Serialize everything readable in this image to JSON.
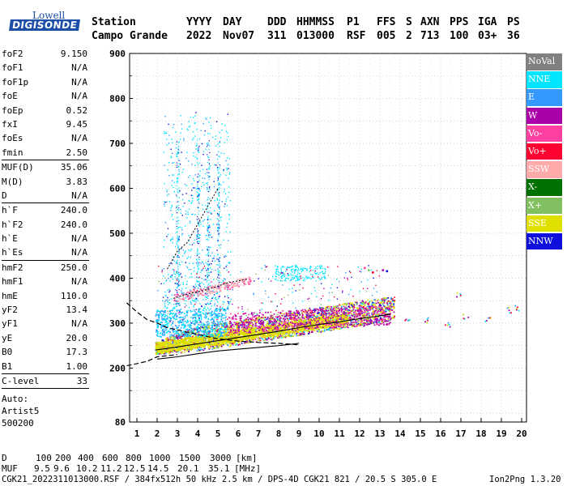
{
  "logo": {
    "top": "Lowell",
    "main": "DIGISONDE"
  },
  "header": {
    "labels": [
      "Station",
      "YYYY",
      "DAY",
      "DDD",
      "HHMMSS",
      "P1",
      "FFS",
      "S",
      "AXN",
      "PPS",
      "IGA",
      "PS"
    ],
    "values": [
      "Campo Grande",
      "2022",
      "Nov07",
      "311",
      "013000",
      "RSF",
      "005",
      "2",
      "713",
      "100",
      "03+",
      "36"
    ]
  },
  "params_groups": [
    [
      {
        "label": "foF2",
        "value": "9.150"
      },
      {
        "label": "foF1",
        "value": "N/A"
      },
      {
        "label": "foF1p",
        "value": "N/A"
      },
      {
        "label": "foE",
        "value": "N/A"
      },
      {
        "label": "foEp",
        "value": "0.52"
      },
      {
        "label": "fxI",
        "value": "9.45"
      },
      {
        "label": "foEs",
        "value": "N/A"
      },
      {
        "label": "fmin",
        "value": "2.50"
      }
    ],
    [
      {
        "label": "MUF(D)",
        "value": "35.06"
      },
      {
        "label": "M(D)",
        "value": "3.83"
      },
      {
        "label": "D",
        "value": "N/A"
      }
    ],
    [
      {
        "label": "h`F",
        "value": "240.0"
      },
      {
        "label": "h`F2",
        "value": "240.0"
      },
      {
        "label": "h`E",
        "value": "N/A"
      },
      {
        "label": "h`Es",
        "value": "N/A"
      }
    ],
    [
      {
        "label": "hmF2",
        "value": "250.0"
      },
      {
        "label": "hmF1",
        "value": "N/A"
      },
      {
        "label": "hmE",
        "value": "110.0"
      },
      {
        "label": "yF2",
        "value": "13.4"
      },
      {
        "label": "yF1",
        "value": "N/A"
      },
      {
        "label": "yE",
        "value": "20.0"
      },
      {
        "label": "B0",
        "value": "17.3"
      },
      {
        "label": "B1",
        "value": "1.00"
      }
    ],
    [
      {
        "label": "C-level",
        "value": "33"
      }
    ]
  ],
  "autoscale": {
    "line1": "Auto:",
    "line2": "Artist5",
    "line3": "500200"
  },
  "legend": [
    {
      "name": "NoVal",
      "color": "#808080"
    },
    {
      "name": "NNE",
      "color": "#00e5ff"
    },
    {
      "name": "E",
      "color": "#3399ff"
    },
    {
      "name": "W",
      "color": "#aa00aa"
    },
    {
      "name": "Vo-",
      "color": "#ff40a0"
    },
    {
      "name": "Vo+",
      "color": "#ff0030"
    },
    {
      "name": "SSW",
      "color": "#ffaaaa"
    },
    {
      "name": "X-",
      "color": "#007000"
    },
    {
      "name": "X+",
      "color": "#80c060"
    },
    {
      "name": "SSE",
      "color": "#e0e000"
    },
    {
      "name": "NNW",
      "color": "#1010dd"
    }
  ],
  "chart_data": {
    "type": "scatter",
    "title": "",
    "xlabel": "",
    "ylabel": "",
    "xlim": [
      0.5,
      20
    ],
    "ylim": [
      80,
      900
    ],
    "xticks": [
      1,
      2,
      3,
      4,
      5,
      6,
      7,
      8,
      9,
      10,
      11,
      12,
      13,
      14,
      15,
      16,
      17,
      18,
      19,
      20
    ],
    "yticks": [
      80,
      200,
      300,
      400,
      500,
      600,
      700,
      800,
      900
    ],
    "grid": true,
    "legend_position": "right",
    "series": [
      {
        "name": "NNE",
        "color": "#00e5ff"
      },
      {
        "name": "E",
        "color": "#3399ff"
      },
      {
        "name": "W",
        "color": "#aa00aa"
      },
      {
        "name": "Vo-",
        "color": "#ff40a0"
      },
      {
        "name": "Vo+",
        "color": "#ff0030"
      },
      {
        "name": "SSW",
        "color": "#ffaaaa"
      },
      {
        "name": "X+",
        "color": "#80c060"
      },
      {
        "name": "SSE",
        "color": "#e0e000"
      },
      {
        "name": "NNW",
        "color": "#1010dd"
      }
    ],
    "traces": {
      "o_trace_main": [
        [
          1.9,
          240
        ],
        [
          3,
          247
        ],
        [
          4,
          254
        ],
        [
          5,
          261
        ],
        [
          6,
          268
        ],
        [
          7,
          275
        ],
        [
          8,
          282
        ],
        [
          9,
          290
        ],
        [
          10,
          297
        ],
        [
          11,
          303
        ],
        [
          12,
          310
        ],
        [
          13,
          316
        ],
        [
          13.5,
          320
        ]
      ],
      "profile_curve": [
        [
          0.5,
          345
        ],
        [
          1,
          325
        ],
        [
          1.5,
          308
        ],
        [
          2,
          300
        ],
        [
          2.5,
          290
        ],
        [
          3,
          285
        ],
        [
          4,
          275
        ],
        [
          5,
          265
        ],
        [
          6,
          260
        ],
        [
          7,
          257
        ],
        [
          8,
          255
        ],
        [
          9,
          252
        ]
      ],
      "profile_lower": [
        [
          0.5,
          205
        ],
        [
          1,
          210
        ],
        [
          1.5,
          215
        ],
        [
          2,
          225
        ],
        [
          3,
          230
        ]
      ],
      "lower_line": [
        [
          2,
          220
        ],
        [
          3,
          225
        ],
        [
          4,
          232
        ],
        [
          5,
          238
        ],
        [
          6,
          242
        ],
        [
          7,
          246
        ],
        [
          8,
          250
        ],
        [
          9,
          255
        ]
      ],
      "spread_upper": [
        [
          2.5,
          420
        ],
        [
          3,
          460
        ],
        [
          3.5,
          480
        ],
        [
          4,
          520
        ],
        [
          4.5,
          560
        ],
        [
          5,
          600
        ]
      ],
      "cusp_pink": [
        [
          2.8,
          355
        ],
        [
          3.5,
          365
        ],
        [
          4.5,
          375
        ],
        [
          5.5,
          390
        ],
        [
          6.5,
          398
        ]
      ],
      "extra_points": [
        [
          14.3,
          310
        ],
        [
          15.2,
          308
        ],
        [
          16.3,
          300
        ],
        [
          16.9,
          365
        ],
        [
          17.2,
          315
        ],
        [
          18.3,
          312
        ],
        [
          19.4,
          330
        ],
        [
          19.8,
          335
        ]
      ]
    }
  },
  "bottom": {
    "d_label": "D",
    "d_values": [
      "100",
      "200",
      "400",
      "600",
      "800",
      "1000",
      "1500",
      "3000",
      "[km]"
    ],
    "muf_label": "MUF",
    "muf_values": [
      "9.5",
      "9.6",
      "10.2",
      "11.2",
      "12.5",
      "14.5",
      "20.1",
      "35.1",
      "[MHz]"
    ],
    "footer": "CGK21_2022311013000.RSF / 384fx512h 50 kHz 2.5 km / DPS-4D CGK21 821 / 20.5 S 305.0 E",
    "version": "Ion2Png 1.3.20"
  }
}
